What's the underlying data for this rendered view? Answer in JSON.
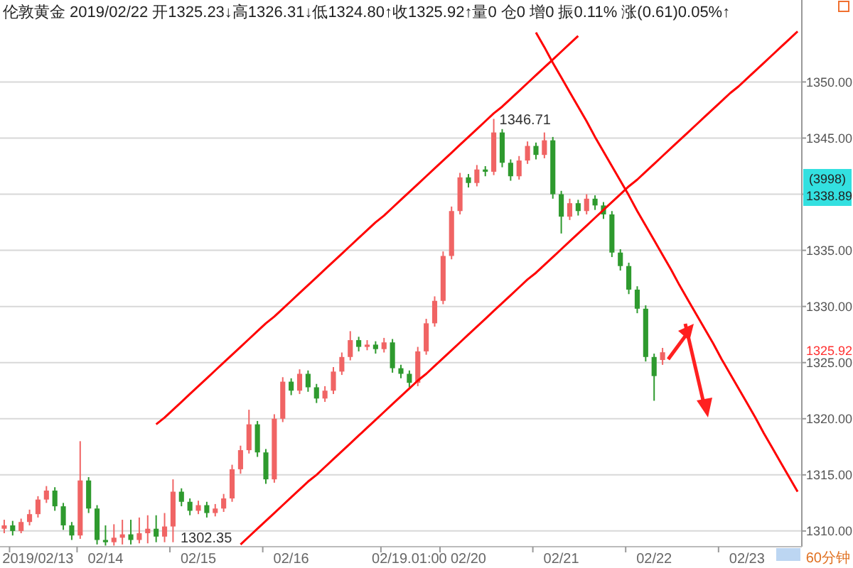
{
  "chart_data": {
    "type": "candlestick",
    "title": "伦敦黄金 2019/02/22 开1325.23↓高1326.31↓低1324.80↑收1325.92↑量0  仓0  增0  振0.11%  涨(0.61)0.05%↑",
    "categories": [
      null,
      null,
      null,
      null,
      "2019/02/13",
      null,
      null,
      null,
      null,
      null,
      null,
      null,
      "02/14",
      null,
      null,
      null,
      null,
      null,
      null,
      null,
      null,
      null,
      null,
      "02/15",
      null,
      null,
      null,
      null,
      null,
      null,
      null,
      null,
      null,
      null,
      "02/16",
      null,
      null,
      null,
      null,
      null,
      null,
      null,
      null,
      null,
      null,
      null,
      null,
      null,
      "02/19.01:00",
      null,
      null,
      null,
      null,
      null,
      null,
      "02/20",
      null,
      null,
      null,
      null,
      null,
      null,
      null,
      null,
      null,
      null,
      "02/21",
      null,
      null,
      null,
      null,
      null,
      null,
      null,
      null,
      null,
      null,
      "02/22",
      null,
      null,
      null,
      null,
      null,
      null,
      null,
      null,
      null,
      null,
      "02/23",
      null,
      null,
      null,
      null,
      null,
      null
    ],
    "ohlc": [
      [
        1310.2,
        1311.0,
        1309.8,
        1310.5
      ],
      [
        1310.5,
        1310.9,
        1309.6,
        1310.0
      ],
      [
        1310.0,
        1311.1,
        1309.8,
        1310.8
      ],
      [
        1310.8,
        1311.9,
        1310.5,
        1311.5
      ],
      [
        1311.5,
        1313.1,
        1311.2,
        1312.8
      ],
      [
        1312.8,
        1314.0,
        1312.5,
        1313.6
      ],
      [
        1313.6,
        1313.9,
        1311.8,
        1312.2
      ],
      [
        1312.2,
        1312.5,
        1310.1,
        1310.5
      ],
      [
        1310.5,
        1310.8,
        1309.2,
        1309.6
      ],
      [
        1309.6,
        1318.0,
        1309.3,
        1314.5
      ],
      [
        1314.5,
        1314.8,
        1311.6,
        1312.0
      ],
      [
        1312.0,
        1312.3,
        1308.8,
        1309.2
      ],
      [
        1309.2,
        1310.5,
        1308.7,
        1309.0
      ],
      [
        1309.0,
        1310.6,
        1308.7,
        1309.4
      ],
      [
        1309.4,
        1311.0,
        1308.8,
        1309.7
      ],
      [
        1309.7,
        1311.0,
        1308.8,
        1309.2
      ],
      [
        1309.2,
        1311.2,
        1308.9,
        1309.8
      ],
      [
        1309.8,
        1311.4,
        1308.9,
        1310.2
      ],
      [
        1310.2,
        1311.4,
        1309.0,
        1309.5
      ],
      [
        1309.5,
        1311.6,
        1309.0,
        1310.4
      ],
      [
        1310.4,
        1314.6,
        1309.0,
        1313.5
      ],
      [
        1313.5,
        1313.8,
        1312.2,
        1312.6
      ],
      [
        1312.6,
        1312.9,
        1311.4,
        1311.8
      ],
      [
        1311.8,
        1312.7,
        1311.5,
        1312.3
      ],
      [
        1312.3,
        1312.6,
        1311.2,
        1311.6
      ],
      [
        1311.6,
        1312.4,
        1311.3,
        1312.0
      ],
      [
        1312.0,
        1313.3,
        1311.7,
        1312.9
      ],
      [
        1312.9,
        1315.9,
        1312.6,
        1315.5
      ],
      [
        1315.5,
        1317.6,
        1315.1,
        1317.2
      ],
      [
        1317.2,
        1320.8,
        1316.9,
        1319.5
      ],
      [
        1319.5,
        1319.8,
        1316.6,
        1317.0
      ],
      [
        1317.0,
        1317.3,
        1314.2,
        1314.6
      ],
      [
        1314.6,
        1320.4,
        1314.3,
        1320.0
      ],
      [
        1320.0,
        1323.7,
        1319.7,
        1323.3
      ],
      [
        1323.3,
        1323.6,
        1322.1,
        1322.5
      ],
      [
        1322.5,
        1324.4,
        1322.2,
        1324.0
      ],
      [
        1324.0,
        1324.3,
        1322.4,
        1322.8
      ],
      [
        1322.8,
        1323.1,
        1321.4,
        1321.8
      ],
      [
        1321.8,
        1322.9,
        1321.5,
        1322.5
      ],
      [
        1322.5,
        1324.6,
        1322.2,
        1324.2
      ],
      [
        1324.2,
        1325.9,
        1323.9,
        1325.5
      ],
      [
        1325.5,
        1327.8,
        1325.2,
        1327.0
      ],
      [
        1327.0,
        1327.3,
        1326.0,
        1326.4
      ],
      [
        1326.4,
        1327.0,
        1326.1,
        1326.6
      ],
      [
        1326.6,
        1326.9,
        1325.8,
        1326.2
      ],
      [
        1326.2,
        1327.2,
        1325.9,
        1326.8
      ],
      [
        1326.8,
        1327.1,
        1324.1,
        1324.5
      ],
      [
        1324.5,
        1324.8,
        1323.6,
        1324.0
      ],
      [
        1324.0,
        1324.3,
        1322.8,
        1323.2
      ],
      [
        1323.2,
        1326.4,
        1322.9,
        1326.0
      ],
      [
        1326.0,
        1328.9,
        1325.7,
        1328.5
      ],
      [
        1328.5,
        1330.9,
        1328.2,
        1330.5
      ],
      [
        1330.5,
        1334.9,
        1330.2,
        1334.5
      ],
      [
        1334.5,
        1338.9,
        1334.2,
        1338.5
      ],
      [
        1338.5,
        1341.9,
        1338.2,
        1341.5
      ],
      [
        1341.5,
        1341.8,
        1340.6,
        1341.0
      ],
      [
        1341.0,
        1342.6,
        1340.7,
        1342.2
      ],
      [
        1342.2,
        1342.5,
        1341.6,
        1342.0
      ],
      [
        1342.0,
        1346.71,
        1341.7,
        1345.5
      ],
      [
        1345.5,
        1345.8,
        1342.4,
        1342.8
      ],
      [
        1342.8,
        1343.1,
        1341.2,
        1341.6
      ],
      [
        1341.6,
        1343.4,
        1341.3,
        1343.0
      ],
      [
        1343.0,
        1344.7,
        1342.7,
        1344.3
      ],
      [
        1344.3,
        1344.6,
        1343.1,
        1343.5
      ],
      [
        1343.5,
        1345.5,
        1343.2,
        1344.8
      ],
      [
        1344.8,
        1345.1,
        1339.6,
        1340.0
      ],
      [
        1340.0,
        1340.3,
        1336.5,
        1338.0
      ],
      [
        1338.0,
        1339.6,
        1337.7,
        1339.2
      ],
      [
        1339.2,
        1339.5,
        1338.1,
        1338.5
      ],
      [
        1338.5,
        1340.0,
        1338.2,
        1339.6
      ],
      [
        1339.6,
        1339.9,
        1338.6,
        1339.0
      ],
      [
        1339.0,
        1339.3,
        1337.8,
        1338.2
      ],
      [
        1338.2,
        1338.5,
        1334.4,
        1334.8
      ],
      [
        1334.8,
        1335.1,
        1333.2,
        1333.6
      ],
      [
        1333.6,
        1333.9,
        1331.1,
        1331.5
      ],
      [
        1331.5,
        1331.8,
        1329.4,
        1329.8
      ],
      [
        1329.8,
        1330.1,
        1325.1,
        1325.5
      ],
      [
        1325.5,
        1325.8,
        1321.6,
        1323.8
      ],
      [
        1325.23,
        1326.31,
        1324.8,
        1325.92
      ],
      null,
      null,
      null,
      null,
      null,
      null,
      null,
      null,
      null,
      null,
      null,
      null,
      null,
      null,
      null,
      null
    ],
    "colors": [
      "#f06464",
      "#2e9a2e",
      "#f06464",
      "#f06464",
      "#f06464",
      "#f06464",
      "#2e9a2e",
      "#2e9a2e",
      "#2e9a2e",
      "#f06464",
      "#2e9a2e",
      "#2e9a2e",
      "#2e9a2e",
      "#f06464",
      "#f06464",
      "#2e9a2e",
      "#f06464",
      "#f06464",
      "#2e9a2e",
      "#f06464",
      "#f06464",
      "#2e9a2e",
      "#2e9a2e",
      "#f06464",
      "#2e9a2e",
      "#f06464",
      "#f06464",
      "#f06464",
      "#f06464",
      "#f06464",
      "#2e9a2e",
      "#2e9a2e",
      "#f06464",
      "#f06464",
      "#2e9a2e",
      "#f06464",
      "#2e9a2e",
      "#2e9a2e",
      "#f06464",
      "#f06464",
      "#f06464",
      "#f06464",
      "#2e9a2e",
      "#f06464",
      "#2e9a2e",
      "#f06464",
      "#2e9a2e",
      "#2e9a2e",
      "#2e9a2e",
      "#f06464",
      "#f06464",
      "#f06464",
      "#f06464",
      "#f06464",
      "#f06464",
      "#2e9a2e",
      "#f06464",
      "#2e9a2e",
      "#f06464",
      "#2e9a2e",
      "#2e9a2e",
      "#f06464",
      "#f06464",
      "#2e9a2e",
      "#f06464",
      "#2e9a2e",
      "#2e9a2e",
      "#f06464",
      "#2e9a2e",
      "#f06464",
      "#2e9a2e",
      "#2e9a2e",
      "#2e9a2e",
      "#2e9a2e",
      "#2e9a2e",
      "#2e9a2e",
      "#2e9a2e",
      "#2e9a2e",
      "#f06464",
      null,
      null,
      null,
      null,
      null,
      null,
      null,
      null,
      null,
      null,
      null,
      null,
      null,
      null,
      null,
      null
    ],
    "series": [
      {
        "type": "line",
        "color": "#ff0000",
        "values": [
          null,
          null,
          null,
          null,
          null,
          null,
          null,
          null,
          null,
          null,
          null,
          null,
          null,
          null,
          null,
          null,
          null,
          null,
          1319.5,
          1320.1,
          1320.8,
          1321.5,
          1322.2,
          1322.9,
          1323.6,
          1324.3,
          1325.0,
          1325.7,
          1326.4,
          1327.1,
          1327.8,
          1328.5,
          1329.1,
          1329.8,
          1330.5,
          1331.2,
          1331.9,
          1332.6,
          1333.3,
          1334.0,
          1334.7,
          1335.4,
          1336.1,
          1336.8,
          1337.5,
          1338.1,
          1338.8,
          1339.5,
          1340.2,
          1340.9,
          1341.6,
          1342.3,
          1343.0,
          1343.7,
          1344.4,
          1345.1,
          1345.8,
          1346.5,
          1347.2,
          1347.8,
          1348.5,
          1349.2,
          1349.9,
          1350.6,
          1351.3,
          1352.0,
          1352.7,
          1353.4,
          1354.1,
          null,
          null,
          null,
          null,
          null,
          null,
          null,
          null,
          null,
          null,
          null,
          null,
          null,
          null,
          null,
          null,
          null,
          null,
          null,
          null,
          null,
          null,
          null,
          null,
          null,
          null
        ]
      },
      {
        "type": "line",
        "color": "#ff0000",
        "values": [
          null,
          null,
          null,
          null,
          null,
          null,
          null,
          null,
          null,
          null,
          null,
          null,
          null,
          null,
          null,
          null,
          null,
          null,
          null,
          null,
          null,
          null,
          null,
          null,
          null,
          null,
          null,
          null,
          1308.8,
          1309.5,
          1310.2,
          1310.9,
          1311.6,
          1312.3,
          1313.0,
          1313.7,
          1314.4,
          1315.0,
          1315.7,
          1316.4,
          1317.1,
          1317.8,
          1318.5,
          1319.2,
          1319.9,
          1320.6,
          1321.3,
          1322.0,
          1322.7,
          1323.4,
          1324.0,
          1324.7,
          1325.4,
          1326.1,
          1326.8,
          1327.5,
          1328.2,
          1328.9,
          1329.6,
          1330.3,
          1331.0,
          1331.7,
          1332.4,
          1333.0,
          1333.7,
          1334.4,
          1335.1,
          1335.8,
          1336.5,
          1337.2,
          1337.9,
          1338.6,
          1339.3,
          1340.0,
          1340.7,
          1341.3,
          1342.0,
          1342.7,
          1343.4,
          1344.1,
          1344.8,
          1345.5,
          1346.2,
          1346.9,
          1347.6,
          1348.3,
          1349.0,
          1349.6,
          1350.3,
          1351.0,
          1351.7,
          1352.4,
          1353.1,
          1353.8,
          1354.5
        ]
      },
      {
        "type": "line",
        "color": "#ff0000",
        "values": [
          null,
          null,
          null,
          null,
          null,
          null,
          null,
          null,
          null,
          null,
          null,
          null,
          null,
          null,
          null,
          null,
          null,
          null,
          null,
          null,
          null,
          null,
          null,
          null,
          null,
          null,
          null,
          null,
          null,
          null,
          null,
          null,
          null,
          null,
          null,
          null,
          null,
          null,
          null,
          null,
          null,
          null,
          null,
          null,
          null,
          null,
          null,
          null,
          null,
          null,
          null,
          null,
          null,
          null,
          null,
          null,
          null,
          null,
          null,
          null,
          null,
          null,
          null,
          1354.4,
          1353.1,
          1351.7,
          1350.4,
          1349.1,
          1347.8,
          1346.5,
          1345.1,
          1343.8,
          1342.5,
          1341.2,
          1339.9,
          1338.5,
          1337.2,
          1335.9,
          1334.6,
          1333.3,
          1331.9,
          1330.6,
          1329.3,
          1328.0,
          1326.7,
          1325.3,
          1324.0,
          1322.7,
          1321.4,
          1320.1,
          1318.7,
          1317.4,
          1316.1,
          1314.8,
          1313.5
        ]
      }
    ],
    "ylim": [
      1308.6,
      1357.3
    ],
    "yticks": [
      {
        "value": 1310,
        "label": "1310.00"
      },
      {
        "value": 1315,
        "label": "1315.00"
      },
      {
        "value": 1320,
        "label": "1320.00"
      },
      {
        "value": 1325,
        "label": "1325.00"
      },
      {
        "value": 1330,
        "label": "1330.00"
      },
      {
        "value": 1335,
        "label": "1335.00"
      },
      {
        "value": 1340,
        "label": null
      },
      {
        "value": 1345,
        "label": "1345.00"
      },
      {
        "value": 1350,
        "label": "1350.00"
      }
    ],
    "grid": "y",
    "annotations": [
      "1346.71",
      "1302.35",
      "(3998)",
      "1338.89",
      "1325.92",
      "60分钟"
    ]
  }
}
